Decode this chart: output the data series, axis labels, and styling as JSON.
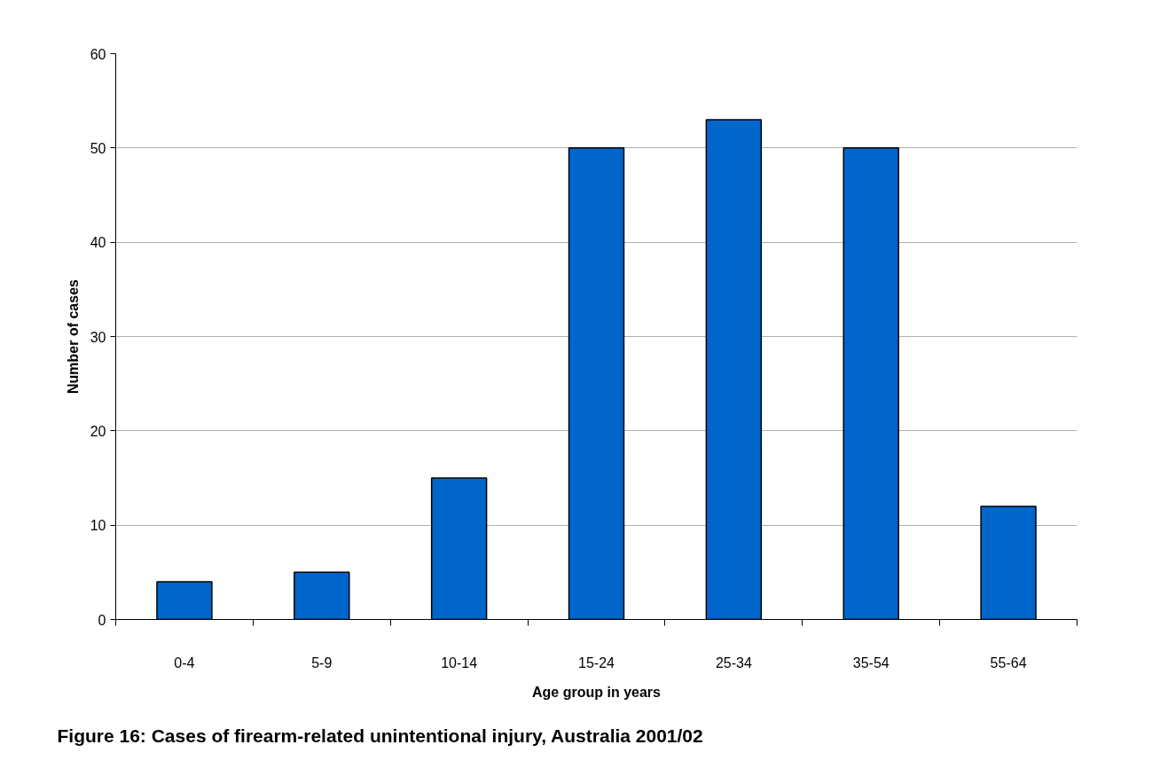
{
  "chart_data": {
    "type": "bar",
    "title": "Figure 16:  Cases of firearm-related unintentional injury, Australia 2001/02",
    "xlabel": "Age group in years",
    "ylabel": "Number of cases",
    "categories": [
      "0-4",
      "5-9",
      "10-14",
      "15-24",
      "25-34",
      "35-54",
      "55-64"
    ],
    "values": [
      4,
      5,
      15,
      50,
      53,
      50,
      12
    ],
    "color": "#0066cc",
    "ylim": [
      0,
      60
    ],
    "yticks": [
      0,
      10,
      20,
      30,
      40,
      50,
      60
    ],
    "grid": "y"
  }
}
